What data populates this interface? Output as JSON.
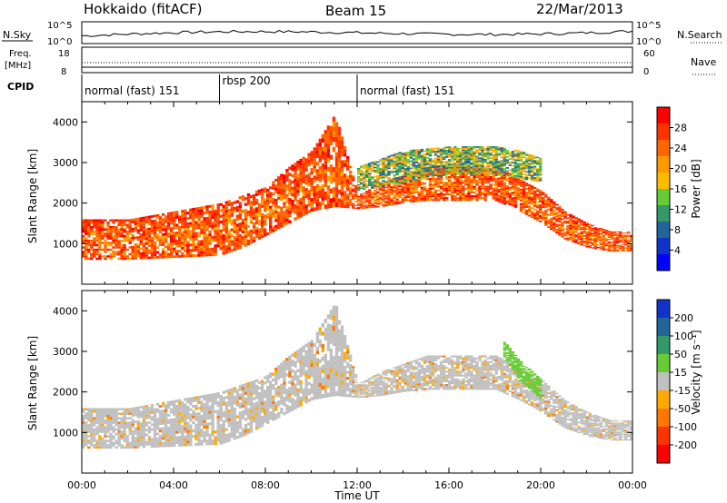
{
  "header": {
    "station": "Hokkaido (fitACF)",
    "beam": "Beam 15",
    "date": "22/Mar/2013"
  },
  "top_panels": {
    "nsky_label": "N.Sky",
    "nsearch_label": "N.Search",
    "nsky_ticks": [
      "10^5",
      "10^0"
    ],
    "nsearch_ticks": [
      "10^5",
      "10^0"
    ],
    "freq_label_1": "Freq.",
    "freq_label_2": "[MHz]",
    "freq_ticks": [
      "18",
      "8"
    ],
    "nave_label": "Nave",
    "nave_ticks": [
      "60",
      "0"
    ],
    "cpid_label": "CPID"
  },
  "cpid_segments": [
    {
      "label": "normal (fast) 151",
      "start_h": 0,
      "end_h": 6
    },
    {
      "label": "rbsp 200",
      "start_h": 6,
      "end_h": 12
    },
    {
      "label": "normal (fast) 151",
      "start_h": 12,
      "end_h": 24
    }
  ],
  "power_colorbar": {
    "title": "Power [dB]",
    "ticks": [
      "28",
      "24",
      "20",
      "16",
      "12",
      "8",
      "4"
    ],
    "colors": [
      "#ff0000",
      "#ff3300",
      "#ff6600",
      "#ff9900",
      "#ffbb00",
      "#66cc33",
      "#339966",
      "#226699",
      "#1133cc",
      "#0000ff"
    ]
  },
  "velocity_colorbar": {
    "title": "Velocity [m s⁻¹]",
    "ticks": [
      "200",
      "100",
      "50",
      "15",
      "-15",
      "-50",
      "-100",
      "-200"
    ],
    "colors": [
      "#1133cc",
      "#226699",
      "#339966",
      "#66cc33",
      "#c0c0c0",
      "#ffaa00",
      "#ff7700",
      "#ff3300",
      "#ff0000"
    ]
  },
  "chart_data": [
    {
      "type": "heatmap",
      "name": "Power",
      "xlabel": "",
      "ylabel": "Slant Range [km]",
      "xlim_hours": [
        0,
        24
      ],
      "ylim_km": [
        0,
        4500
      ],
      "yticks": [
        1000,
        2000,
        3000,
        4000
      ],
      "bands": [
        {
          "t": [
            0,
            2,
            4,
            6,
            7,
            8,
            9,
            10,
            11,
            12,
            13,
            14,
            15,
            16,
            17,
            18,
            19,
            20,
            21,
            22,
            23,
            24
          ],
          "lo": [
            600,
            600,
            650,
            700,
            900,
            1200,
            1500,
            1800,
            1900,
            1850,
            1900,
            2000,
            2050,
            2050,
            2050,
            2050,
            1800,
            1500,
            1100,
            900,
            800,
            800
          ],
          "hi": [
            1600,
            1600,
            1800,
            2000,
            2200,
            2400,
            2900,
            3300,
            4200,
            2200,
            2500,
            2700,
            2900,
            2900,
            2900,
            2900,
            2600,
            2300,
            1800,
            1500,
            1300,
            1300
          ],
          "level": "strong"
        },
        {
          "t": [
            12,
            14,
            16,
            18,
            19,
            20
          ],
          "lo": [
            2300,
            2500,
            2700,
            2700,
            2600,
            2500
          ],
          "hi": [
            2900,
            3300,
            3400,
            3400,
            3300,
            3100
          ],
          "level": "weak"
        }
      ]
    },
    {
      "type": "heatmap",
      "name": "Velocity",
      "xlabel": "Time UT",
      "ylabel": "Slant Range [km]",
      "xlim_hours": [
        0,
        24
      ],
      "ylim_km": [
        0,
        4500
      ],
      "yticks": [
        1000,
        2000,
        3000,
        4000
      ],
      "xticks": [
        "00:00",
        "04:00",
        "08:00",
        "12:00",
        "16:00",
        "20:00",
        "00:00"
      ],
      "bands": [
        {
          "t": [
            0,
            2,
            4,
            6,
            7,
            8,
            9,
            10,
            11,
            12,
            13,
            14,
            15,
            16,
            17,
            18,
            19,
            20,
            21,
            22,
            23,
            24
          ],
          "lo": [
            600,
            600,
            650,
            700,
            900,
            1200,
            1500,
            1800,
            1900,
            1850,
            1900,
            2000,
            2050,
            2050,
            2050,
            2050,
            1800,
            1500,
            1100,
            900,
            800,
            800
          ],
          "hi": [
            1600,
            1600,
            1800,
            2000,
            2200,
            2400,
            2900,
            3300,
            4200,
            2200,
            2500,
            2700,
            2900,
            2900,
            2900,
            2900,
            2600,
            2300,
            1800,
            1500,
            1300,
            1300
          ],
          "level": "gray"
        },
        {
          "t": [
            18.3,
            19,
            20
          ],
          "lo": [
            2900,
            2300,
            1800
          ],
          "hi": [
            3300,
            2800,
            2300
          ],
          "level": "green"
        }
      ]
    }
  ]
}
